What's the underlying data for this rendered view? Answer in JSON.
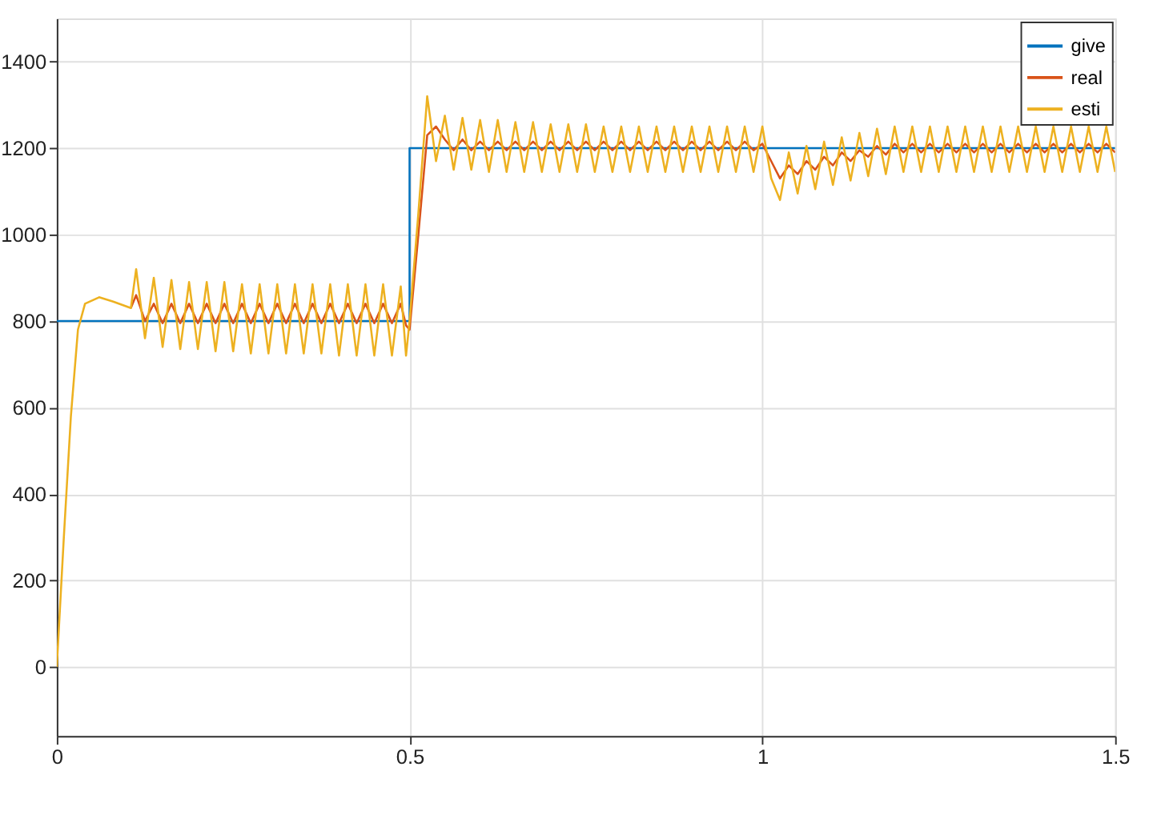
{
  "chart_data": {
    "type": "line",
    "x": [
      0,
      0.01,
      0.02,
      0.03,
      0.04,
      0.06,
      0.08,
      0.105,
      0.1125,
      0.125,
      0.1375,
      0.15,
      0.1625,
      0.175,
      0.1875,
      0.2,
      0.2125,
      0.225,
      0.2375,
      0.25,
      0.2625,
      0.275,
      0.2875,
      0.3,
      0.3125,
      0.325,
      0.3375,
      0.35,
      0.3625,
      0.375,
      0.3875,
      0.4,
      0.4125,
      0.425,
      0.4375,
      0.45,
      0.4625,
      0.475,
      0.4875,
      0.495,
      0.5,
      0.5125,
      0.525,
      0.5375,
      0.55,
      0.5625,
      0.575,
      0.5875,
      0.6,
      0.6125,
      0.625,
      0.6375,
      0.65,
      0.6625,
      0.675,
      0.6875,
      0.7,
      0.7125,
      0.725,
      0.7375,
      0.75,
      0.7625,
      0.775,
      0.7875,
      0.8,
      0.8125,
      0.825,
      0.8375,
      0.85,
      0.8625,
      0.875,
      0.8875,
      0.9,
      0.9125,
      0.925,
      0.9375,
      0.95,
      0.9625,
      0.975,
      0.9875,
      1.0,
      1.0125,
      1.025,
      1.0375,
      1.05,
      1.0625,
      1.075,
      1.0875,
      1.1,
      1.1125,
      1.125,
      1.1375,
      1.15,
      1.1625,
      1.175,
      1.1875,
      1.2,
      1.2125,
      1.225,
      1.2375,
      1.25,
      1.2625,
      1.275,
      1.2875,
      1.3,
      1.3125,
      1.325,
      1.3375,
      1.35,
      1.3625,
      1.375,
      1.3875,
      1.4,
      1.4125,
      1.425,
      1.4375,
      1.45,
      1.4625,
      1.475,
      1.4875,
      1.5
    ],
    "series": [
      {
        "name": "give",
        "color": "#0072bd",
        "x": [
          0,
          0.5,
          0.5,
          1.5
        ],
        "values": [
          800,
          800,
          1200,
          1200
        ]
      },
      {
        "name": "real",
        "color": "#d95319",
        "values": [
          null,
          null,
          null,
          null,
          null,
          null,
          null,
          830,
          860,
          800,
          840,
          795,
          840,
          795,
          840,
          795,
          840,
          795,
          840,
          795,
          840,
          795,
          840,
          795,
          840,
          795,
          840,
          795,
          840,
          795,
          840,
          795,
          840,
          795,
          840,
          795,
          840,
          795,
          840,
          790,
          780,
          1000,
          1230,
          1250,
          1220,
          1195,
          1220,
          1195,
          1215,
          1195,
          1215,
          1195,
          1215,
          1195,
          1215,
          1195,
          1215,
          1195,
          1215,
          1195,
          1215,
          1195,
          1215,
          1195,
          1215,
          1195,
          1215,
          1195,
          1215,
          1195,
          1215,
          1195,
          1215,
          1195,
          1215,
          1195,
          1215,
          1195,
          1215,
          1195,
          1210,
          1170,
          1130,
          1160,
          1140,
          1170,
          1150,
          1180,
          1160,
          1190,
          1170,
          1195,
          1180,
          1205,
          1185,
          1210,
          1190,
          1210,
          1190,
          1210,
          1190,
          1210,
          1190,
          1210,
          1190,
          1210,
          1190,
          1210,
          1190,
          1210,
          1190,
          1210,
          1190,
          1210,
          1190,
          1210,
          1190,
          1210,
          1190,
          1210,
          1190
        ]
      },
      {
        "name": "esti",
        "color": "#edb120",
        "values": [
          0,
          300,
          580,
          780,
          840,
          855,
          845,
          830,
          920,
          760,
          900,
          740,
          895,
          735,
          890,
          735,
          890,
          730,
          890,
          730,
          885,
          725,
          885,
          725,
          885,
          725,
          885,
          725,
          885,
          725,
          885,
          720,
          885,
          720,
          885,
          720,
          885,
          720,
          880,
          720,
          800,
          1050,
          1320,
          1170,
          1275,
          1150,
          1270,
          1150,
          1265,
          1145,
          1265,
          1145,
          1260,
          1145,
          1260,
          1145,
          1255,
          1145,
          1255,
          1145,
          1255,
          1145,
          1250,
          1145,
          1250,
          1145,
          1250,
          1145,
          1250,
          1145,
          1250,
          1145,
          1250,
          1145,
          1250,
          1145,
          1250,
          1145,
          1250,
          1145,
          1250,
          1130,
          1080,
          1190,
          1095,
          1205,
          1105,
          1215,
          1115,
          1225,
          1125,
          1235,
          1135,
          1245,
          1140,
          1250,
          1145,
          1250,
          1145,
          1250,
          1145,
          1250,
          1145,
          1250,
          1145,
          1250,
          1145,
          1250,
          1145,
          1250,
          1145,
          1250,
          1145,
          1250,
          1145,
          1250,
          1145,
          1250,
          1145,
          1250,
          1145
        ]
      }
    ],
    "xlim": [
      0,
      1.5
    ],
    "xticks": [
      0,
      0.5,
      1,
      1.5
    ],
    "ylim": [
      -160,
      1500
    ],
    "yticks": [
      0,
      200,
      400,
      600,
      800,
      1000,
      1200,
      1400
    ],
    "grid": true,
    "legend": "top right",
    "marker": "none",
    "line_style": "solid"
  }
}
